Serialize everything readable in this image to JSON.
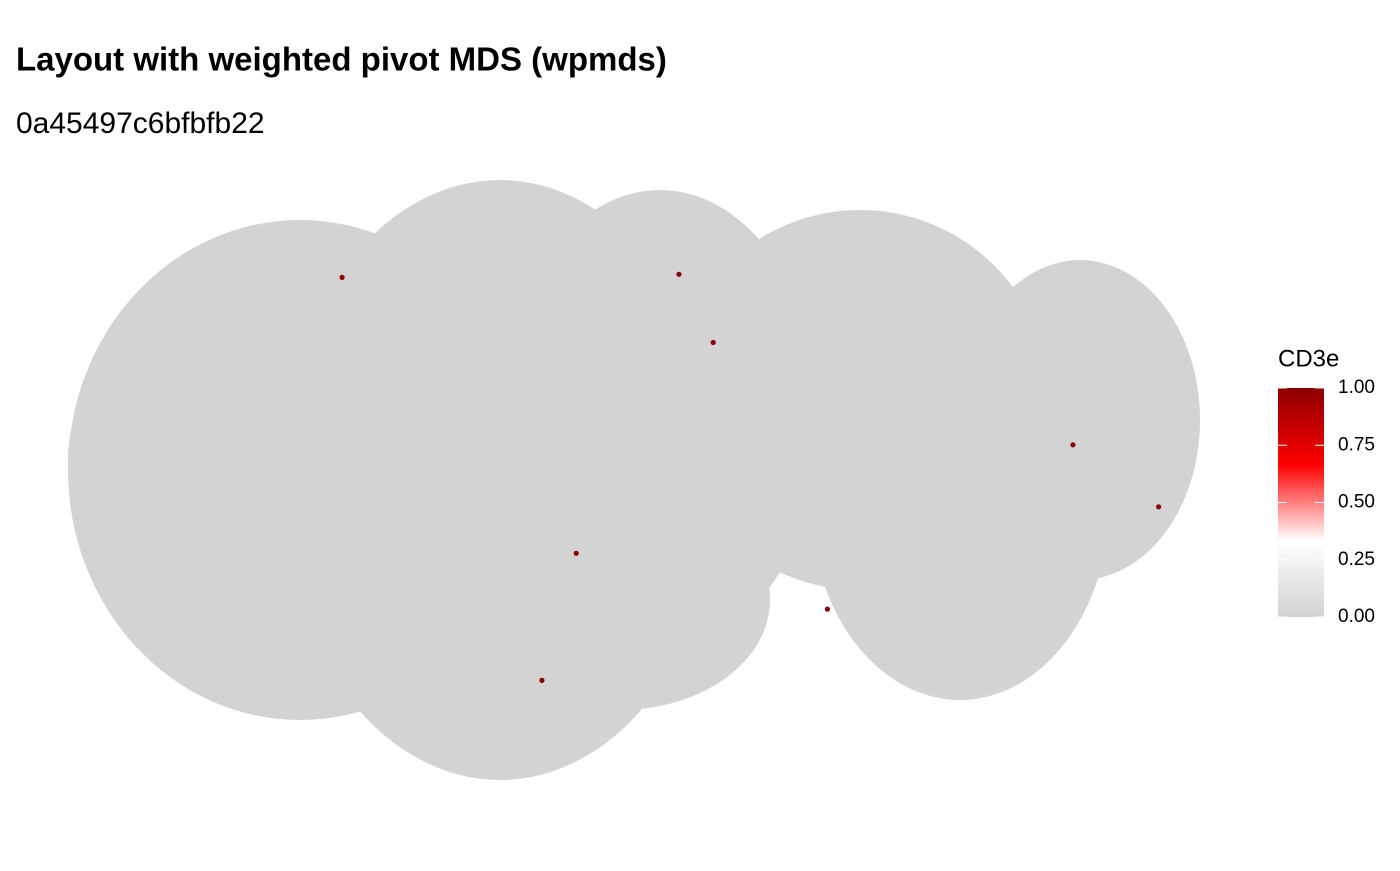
{
  "chart_data": {
    "type": "scatter",
    "title": "Layout with weighted pivot MDS (wpmds)",
    "subtitle": "0a45497c6bfbfb22",
    "x": [
      -0.52,
      0.07,
      0.13,
      0.76,
      0.91,
      -0.11,
      0.33,
      -0.17
    ],
    "y": [
      0.66,
      0.67,
      0.45,
      0.12,
      -0.08,
      -0.23,
      -0.41,
      -0.64
    ],
    "values": [
      1,
      1,
      1,
      1,
      1,
      1,
      1,
      1
    ],
    "xlim": [
      -1,
      1
    ],
    "ylim": [
      -1,
      1
    ],
    "color_scale": {
      "title": "CD3e",
      "lim": [
        0,
        1
      ],
      "colors": [
        "#d3d3d3",
        "#ffffff",
        "#ff0000",
        "#8b0000"
      ],
      "ticks": [
        {
          "value": 0,
          "label": "0.00"
        },
        {
          "value": 0.25,
          "label": "0.25"
        },
        {
          "value": 0.5,
          "label": "0.50"
        },
        {
          "value": 0.75,
          "label": "0.75"
        },
        {
          "value": 1,
          "label": "1.00"
        }
      ]
    }
  }
}
